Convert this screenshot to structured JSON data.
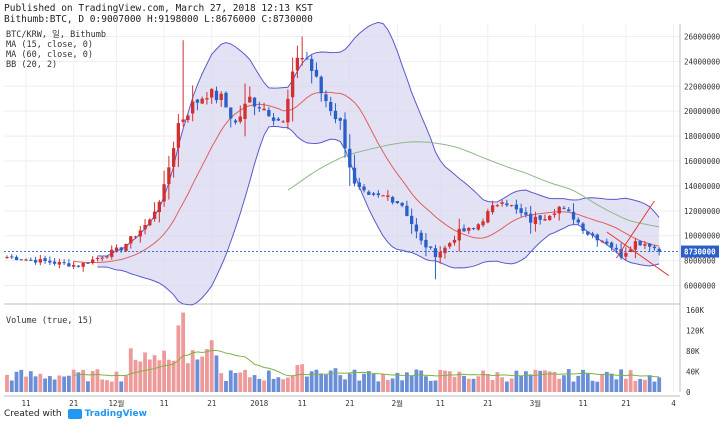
{
  "header": {
    "line1": "Published on TradingView.com, March 27, 2018 12:13 KST",
    "line2": "Bithumb:BTC, D 0:9007000 H:9198000 L:8676000 C:8730000"
  },
  "legend": {
    "symbol": "BTC/KRW, 일, Bithumb",
    "ma15": "MA (15, close, 0)",
    "ma60": "MA (60, close, 0)",
    "bb": "BB (20, 2)",
    "volume": "Volume (true, 15)"
  },
  "footer": {
    "created_with": "Created with",
    "brand": "TradingView"
  },
  "colors": {
    "up": "#d32f2f",
    "down": "#2a5fc9",
    "ma15": "#e06060",
    "ma60": "#8fb889",
    "band_fill": "#d6d6ef",
    "band_line": "#5a5acc",
    "trendline": "#e53935",
    "price_label": "#2a5fc9"
  },
  "chart_data": [
    {
      "type": "candlestick",
      "title": "BTC/KRW, 일, Bithumb",
      "ylim": [
        5000000,
        27000000
      ],
      "y_ticks": [
        "26000000",
        "24000000",
        "22000000",
        "20000000",
        "18000000",
        "16000000",
        "14000000",
        "12000000",
        "10000000",
        "8000000",
        "6000000"
      ],
      "last_price": "8730000",
      "x_ticks": [
        "11",
        "21",
        "12월",
        "11",
        "21",
        "2018",
        "11",
        "21",
        "2월",
        "11",
        "21",
        "3월",
        "11",
        "21",
        "4"
      ],
      "anchors": [
        {
          "x": 0,
          "y": 8300000
        },
        {
          "x": 15,
          "y": 7600000
        },
        {
          "x": 24,
          "y": 9000000
        },
        {
          "x": 30,
          "y": 11200000
        },
        {
          "x": 33,
          "y": 13800000
        },
        {
          "x": 36,
          "y": 19000000
        },
        {
          "x": 39,
          "y": 20500000
        },
        {
          "x": 42,
          "y": 21500000
        },
        {
          "x": 45,
          "y": 21000000
        },
        {
          "x": 48,
          "y": 19000000
        },
        {
          "x": 51,
          "y": 21000000
        },
        {
          "x": 55,
          "y": 20000000
        },
        {
          "x": 58,
          "y": 19000000
        },
        {
          "x": 61,
          "y": 24500000
        },
        {
          "x": 63,
          "y": 24200000
        },
        {
          "x": 66,
          "y": 21500000
        },
        {
          "x": 70,
          "y": 19000000
        },
        {
          "x": 73,
          "y": 14000000
        },
        {
          "x": 76,
          "y": 13000000
        },
        {
          "x": 80,
          "y": 13200000
        },
        {
          "x": 83,
          "y": 12500000
        },
        {
          "x": 87,
          "y": 9500000
        },
        {
          "x": 90,
          "y": 8500000
        },
        {
          "x": 92,
          "y": 9000000
        },
        {
          "x": 95,
          "y": 10300000
        },
        {
          "x": 98,
          "y": 10500000
        },
        {
          "x": 101,
          "y": 11800000
        },
        {
          "x": 104,
          "y": 13000000
        },
        {
          "x": 107,
          "y": 12000000
        },
        {
          "x": 110,
          "y": 11200000
        },
        {
          "x": 113,
          "y": 11600000
        },
        {
          "x": 116,
          "y": 12300000
        },
        {
          "x": 119,
          "y": 11500000
        },
        {
          "x": 122,
          "y": 10200000
        },
        {
          "x": 126,
          "y": 9500000
        },
        {
          "x": 129,
          "y": 8400000
        },
        {
          "x": 132,
          "y": 9500000
        },
        {
          "x": 135,
          "y": 9300000
        },
        {
          "x": 137,
          "y": 8730000
        }
      ],
      "volume_scale": {
        "ylim": [
          0,
          160000
        ],
        "y_ticks": [
          "160K",
          "120K",
          "80K",
          "40K",
          "0"
        ]
      }
    }
  ]
}
